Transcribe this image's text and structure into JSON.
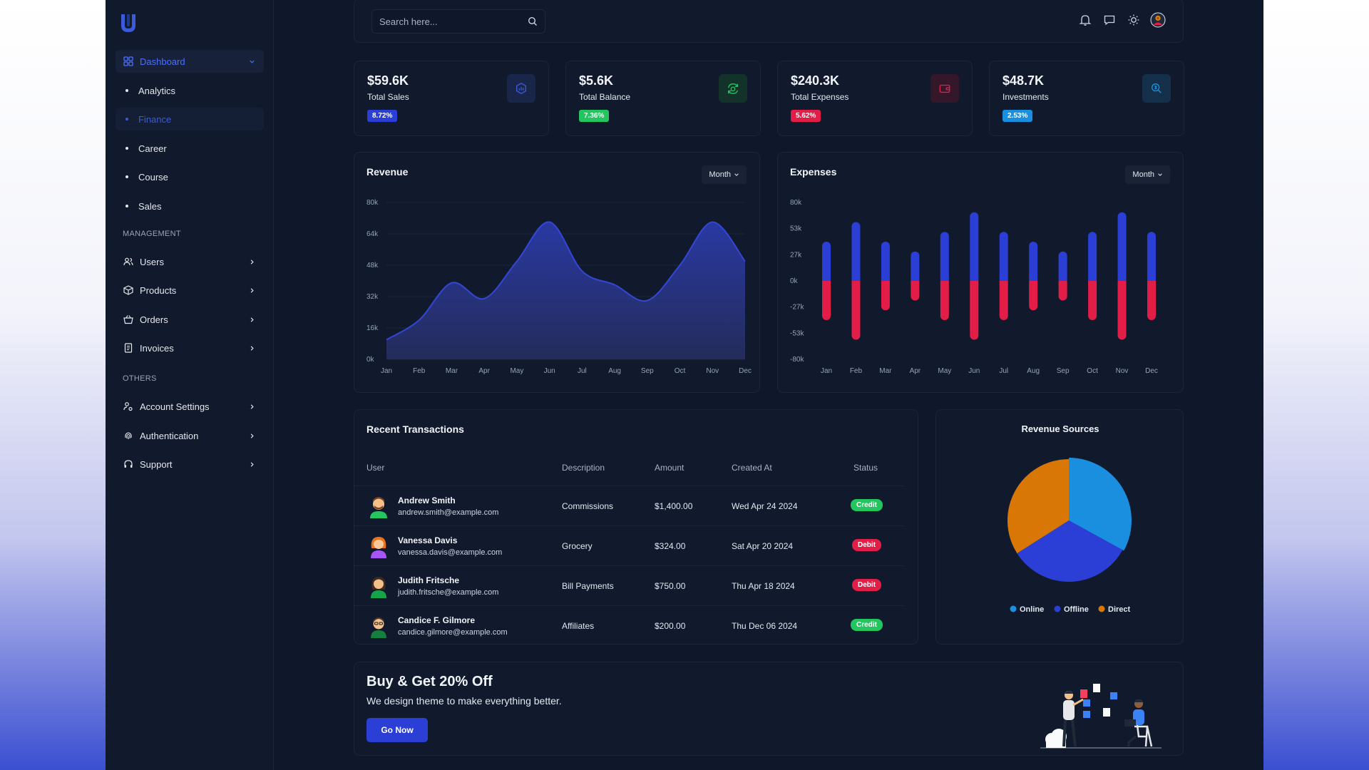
{
  "sidebar": {
    "dashboard": "Dashboard",
    "sub_items": [
      {
        "label": "Analytics"
      },
      {
        "label": "Finance"
      },
      {
        "label": "Career"
      },
      {
        "label": "Course"
      },
      {
        "label": "Sales"
      }
    ],
    "management_label": "MANAGEMENT",
    "management_items": [
      {
        "label": "Users",
        "icon": "users-icon"
      },
      {
        "label": "Products",
        "icon": "box-icon"
      },
      {
        "label": "Orders",
        "icon": "basket-icon"
      },
      {
        "label": "Invoices",
        "icon": "invoice-icon"
      }
    ],
    "others_label": "OTHERS",
    "other_items": [
      {
        "label": "Account Settings",
        "icon": "user-cog-icon"
      },
      {
        "label": "Authentication",
        "icon": "fingerprint-icon"
      },
      {
        "label": "Support",
        "icon": "headset-icon"
      }
    ]
  },
  "topbar": {
    "search_placeholder": "Search here...",
    "icons": [
      "bell-icon",
      "message-icon",
      "sun-icon",
      "user-avatar"
    ]
  },
  "stats": [
    {
      "value": "$59.6K",
      "label": "Total Sales",
      "badge": "8.72%",
      "badge_color": "#2b3fd6",
      "icon": "chart-icon",
      "icon_color": "#3b5bdb",
      "icon_bg": "#19264a"
    },
    {
      "value": "$5.6K",
      "label": "Total Balance",
      "badge": "7.36%",
      "badge_color": "#22c55e",
      "icon": "money-cycle-icon",
      "icon_color": "#22c55e",
      "icon_bg": "#13332a"
    },
    {
      "value": "$240.3K",
      "label": "Total Expenses",
      "badge": "5.62%",
      "badge_color": "#e11d48",
      "icon": "wallet-icon",
      "icon_color": "#e11d48",
      "icon_bg": "#34182a"
    },
    {
      "value": "$48.7K",
      "label": "Investments",
      "badge": "2.53%",
      "badge_color": "#1a8fe0",
      "icon": "investment-icon",
      "icon_color": "#1a8fe0",
      "icon_bg": "#14304a"
    }
  ],
  "revenue": {
    "title": "Revenue",
    "period": "Month"
  },
  "expenses": {
    "title": "Expenses",
    "period": "Month"
  },
  "chart_data": [
    {
      "type": "area",
      "title": "Revenue",
      "categories": [
        "Jan",
        "Feb",
        "Mar",
        "Apr",
        "May",
        "Jun",
        "Jul",
        "Aug",
        "Sep",
        "Oct",
        "Nov",
        "Dec"
      ],
      "values": [
        10000,
        20000,
        39000,
        31000,
        50000,
        70000,
        45000,
        38000,
        30000,
        48000,
        70000,
        50000
      ],
      "yticks": [
        "0k",
        "16k",
        "32k",
        "48k",
        "64k",
        "80k"
      ],
      "ylim": [
        0,
        80000
      ],
      "color": "#2e3fc0"
    },
    {
      "type": "bar",
      "title": "Expenses",
      "categories": [
        "Jan",
        "Feb",
        "Mar",
        "Apr",
        "May",
        "Jun",
        "Jul",
        "Aug",
        "Sep",
        "Oct",
        "Nov",
        "Dec"
      ],
      "series": [
        {
          "values": [
            40000,
            60000,
            40000,
            30000,
            50000,
            70000,
            50000,
            40000,
            30000,
            50000,
            70000,
            50000
          ],
          "color": "#2b3fd6"
        },
        {
          "values": [
            -40000,
            -60000,
            -30000,
            -20000,
            -40000,
            -60000,
            -40000,
            -30000,
            -20000,
            -40000,
            -60000,
            -40000
          ],
          "color": "#e11d48"
        }
      ],
      "yticks": [
        "-80k",
        "-53k",
        "-27k",
        "0k",
        "27k",
        "53k",
        "80k"
      ],
      "ylim": [
        -80000,
        80000
      ]
    },
    {
      "type": "pie",
      "title": "Revenue Sources",
      "labels": [
        "Online",
        "Offline",
        "Direct"
      ],
      "values": [
        33,
        33,
        34
      ],
      "colors": [
        "#1a8fe0",
        "#2b3fd6",
        "#d97706"
      ]
    }
  ],
  "transactions": {
    "title": "Recent Transactions",
    "headers": [
      "User",
      "Description",
      "Amount",
      "Created At",
      "Status"
    ],
    "rows": [
      {
        "name": "Andrew Smith",
        "email": "andrew.smith@example.com",
        "description": "Commissions",
        "amount": "$1,400.00",
        "created": "Wed Apr 24 2024",
        "status": "Credit"
      },
      {
        "name": "Vanessa Davis",
        "email": "vanessa.davis@example.com",
        "description": "Grocery",
        "amount": "$324.00",
        "created": "Sat Apr 20 2024",
        "status": "Debit"
      },
      {
        "name": "Judith Fritsche",
        "email": "judith.fritsche@example.com",
        "description": "Bill Payments",
        "amount": "$750.00",
        "created": "Thu Apr 18 2024",
        "status": "Debit"
      },
      {
        "name": "Candice F. Gilmore",
        "email": "candice.gilmore@example.com",
        "description": "Affiliates",
        "amount": "$200.00",
        "created": "Thu Dec 06 2024",
        "status": "Credit"
      }
    ]
  },
  "sources": {
    "title": "Revenue Sources"
  },
  "promo": {
    "title": "Buy & Get 20% Off",
    "subtitle": "We design theme to make everything better.",
    "button": "Go Now"
  },
  "colors": {
    "accent": "#2b3fd6",
    "credit": "#22c55e",
    "debit": "#e11d48",
    "background": "#0f172a",
    "card": "#111a2d"
  }
}
